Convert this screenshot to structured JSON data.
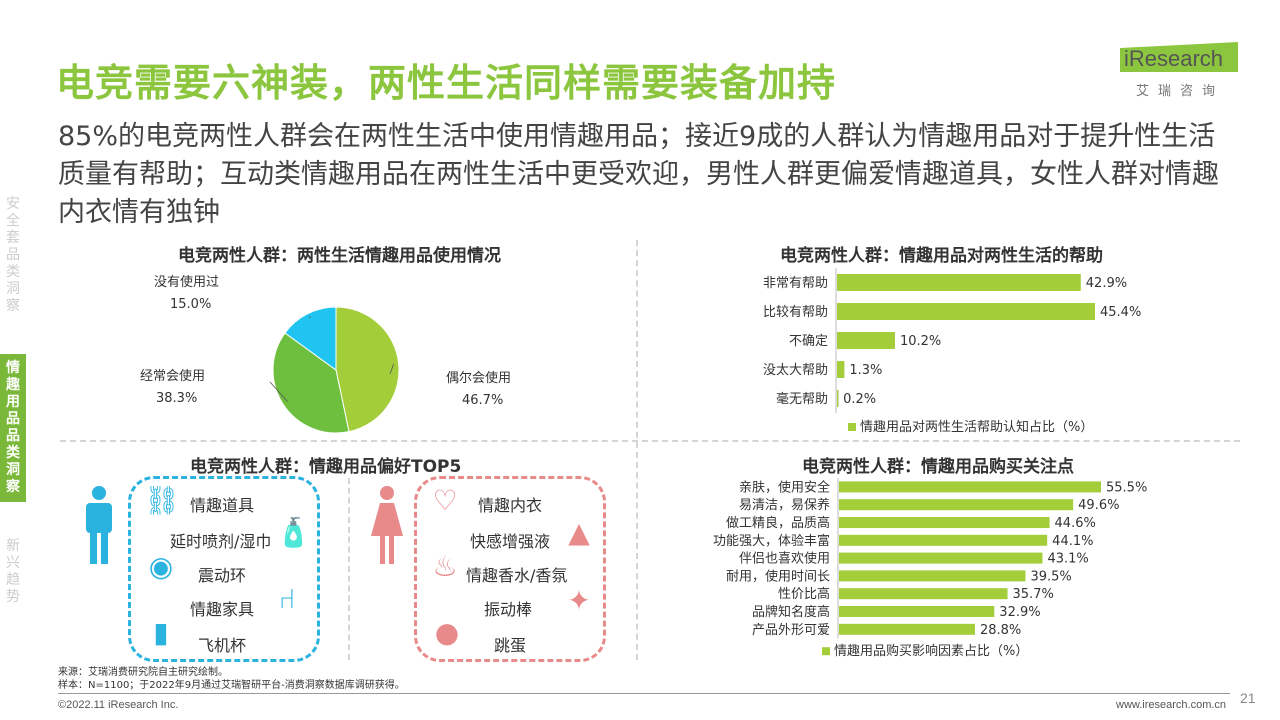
{
  "title": "电竞需要六神装，两性生活同样需要装备加持",
  "subtitle": "85%的电竞两性人群会在两性生活中使用情趣用品；接近9成的人群认为情趣用品对于提升性生活质量有帮助；互动类情趣用品在两性生活中更受欢迎，男性人群更偏爱情趣道具，女性人群对情趣内衣情有独钟",
  "logo": {
    "text": "iResearch",
    "cn": "艾瑞咨询"
  },
  "sidebar": [
    {
      "label": "安全套品类洞察",
      "active": false
    },
    {
      "label": "情趣用品品类洞察",
      "active": true
    },
    {
      "label": "新兴趋势",
      "active": false
    }
  ],
  "colors": {
    "accent": "#8cc63f",
    "bar": "#a3cd39",
    "male": "#2bb3e0",
    "female": "#e88a8a"
  },
  "chart_data": [
    {
      "type": "pie",
      "title": "电竞两性人群：两性生活情趣用品使用情况",
      "slices": [
        {
          "name": "偶尔会使用",
          "value": 46.7,
          "label": "46.7%",
          "color": "#a3cd39"
        },
        {
          "name": "经常会使用",
          "value": 38.3,
          "label": "38.3%",
          "color": "#6fbf3f"
        },
        {
          "name": "没有使用过",
          "value": 15.0,
          "label": "15.0%",
          "color": "#1fc5f0"
        }
      ]
    },
    {
      "type": "bar",
      "orientation": "horizontal",
      "title": "电竞两性人群：情趣用品对两性生活的帮助",
      "categories": [
        "非常有帮助",
        "比较有帮助",
        "不确定",
        "没太大帮助",
        "毫无帮助"
      ],
      "values": [
        42.9,
        45.4,
        10.2,
        1.3,
        0.2
      ],
      "labels": [
        "42.9%",
        "45.4%",
        "10.2%",
        "1.3%",
        "0.2%"
      ],
      "legend": "情趣用品对两性生活帮助认知占比（%）"
    },
    {
      "type": "bar",
      "orientation": "horizontal",
      "title": "电竞两性人群：情趣用品购买关注点",
      "categories": [
        "亲肤，使用安全",
        "易清洁，易保养",
        "做工精良，品质高",
        "功能强大，体验丰富",
        "伴侣也喜欢使用",
        "耐用，使用时间长",
        "性价比高",
        "品牌知名度高",
        "产品外形可爱"
      ],
      "values": [
        55.5,
        49.6,
        44.6,
        44.1,
        43.1,
        39.5,
        35.7,
        32.9,
        28.8
      ],
      "labels": [
        "55.5%",
        "49.6%",
        "44.6%",
        "44.1%",
        "43.1%",
        "39.5%",
        "35.7%",
        "32.9%",
        "28.8%"
      ],
      "legend": "情趣用品购买影响因素占比（%）"
    }
  ],
  "top5": {
    "title": "电竞两性人群：情趣用品偏好TOP5",
    "male": [
      {
        "label": "情趣道具",
        "icon": "handcuffs-icon"
      },
      {
        "label": "延时喷剂/湿巾",
        "icon": "spray-bottle-icon"
      },
      {
        "label": "震动环",
        "icon": "ring-icon"
      },
      {
        "label": "情趣家具",
        "icon": "chair-icon"
      },
      {
        "label": "飞机杯",
        "icon": "cup-icon"
      }
    ],
    "female": [
      {
        "label": "情趣内衣",
        "icon": "lingerie-icon"
      },
      {
        "label": "快感增强液",
        "icon": "bottle-icon"
      },
      {
        "label": "情趣香水/香氛",
        "icon": "diffuser-icon"
      },
      {
        "label": "振动棒",
        "icon": "wand-icon"
      },
      {
        "label": "跳蛋",
        "icon": "egg-icon"
      }
    ]
  },
  "source": "来源：艾瑞消费研究院自主研究绘制。",
  "sample": "样本：N=1100；于2022年9月通过艾瑞智研平台-消费洞察数据库调研获得。",
  "footer": {
    "copyright": "©2022.11 iResearch Inc.",
    "website": "www.iresearch.com.cn",
    "page": "21"
  }
}
